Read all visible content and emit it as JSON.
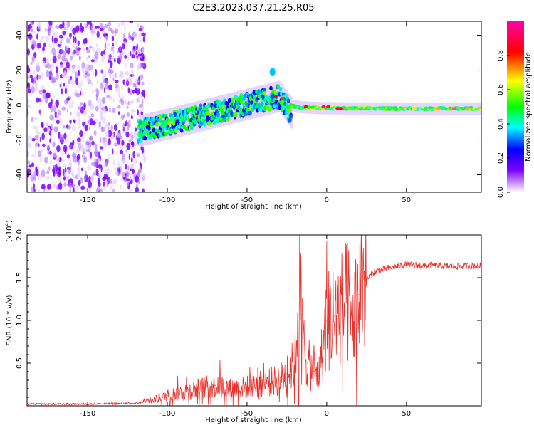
{
  "figure_title": "C2E3.2023.037.21.25.R05",
  "chart_data": [
    {
      "type": "heatmap",
      "title": "C2E3.2023.037.21.25.R05",
      "xlabel": "Height of straight line (km)",
      "ylabel": "Frequency (Hz)",
      "xlim": [
        -188,
        97
      ],
      "ylim": [
        -50,
        48
      ],
      "xticks": [
        -150,
        -100,
        -50,
        0,
        50
      ],
      "yticks": [
        -40,
        -20,
        0,
        20,
        40
      ],
      "colorbar": {
        "label": "Normalized spectral amplitude",
        "range": [
          0,
          1
        ],
        "ticks": [
          0.0,
          0.2,
          0.4,
          0.6,
          0.8
        ],
        "colormap": [
          "#ffffff",
          "#cc99ff",
          "#7f00ff",
          "#0000ff",
          "#00ffff",
          "#00ff00",
          "#ffff00",
          "#ff0000",
          "#ff00aa"
        ]
      },
      "regions": [
        {
          "name": "noise",
          "x_range": [
            -188,
            -118
          ],
          "freq_range": [
            -50,
            48
          ],
          "amplitude": 0.05
        },
        {
          "name": "signal-track",
          "x_range": [
            -118,
            97
          ],
          "freq_start": -15,
          "freq_peak": 5,
          "peak_height": -30,
          "freq_end": -2,
          "amplitude_range": [
            0.2,
            1.0
          ]
        },
        {
          "name": "feature-blob",
          "x": -34,
          "freq": 19,
          "amplitude": 0.35
        }
      ]
    },
    {
      "type": "line",
      "xlabel": "Height of straight line (km)",
      "ylabel": "SNR (10 * v/v)",
      "scale_label": "(x10^4)",
      "scale_label_base": "(x10",
      "scale_label_exp": "4",
      "scale_label_close": ")",
      "xlim": [
        -188,
        97
      ],
      "ylim": [
        0,
        2.0
      ],
      "xticks": [
        -150,
        -100,
        -50,
        0,
        50
      ],
      "yticks": [
        0.5,
        1.0,
        1.5,
        2.0
      ],
      "series": [
        {
          "name": "SNR",
          "color": "#e8332e",
          "x": [
            -188,
            -150,
            -120,
            -110,
            -100,
            -90,
            -80,
            -70,
            -60,
            -50,
            -40,
            -30,
            -25,
            -20,
            -17,
            -15,
            -12,
            -8,
            -5,
            0,
            5,
            10,
            13,
            15,
            20,
            25,
            30,
            40,
            50,
            60,
            70,
            80,
            90,
            97
          ],
          "y": [
            0.02,
            0.02,
            0.03,
            0.06,
            0.12,
            0.16,
            0.2,
            0.24,
            0.2,
            0.22,
            0.26,
            0.3,
            0.38,
            0.5,
            1.35,
            0.8,
            0.5,
            0.4,
            0.35,
            1.0,
            1.05,
            1.15,
            1.2,
            0.9,
            1.3,
            1.48,
            1.57,
            1.62,
            1.65,
            1.64,
            1.64,
            1.63,
            1.64,
            1.64
          ]
        }
      ]
    }
  ]
}
